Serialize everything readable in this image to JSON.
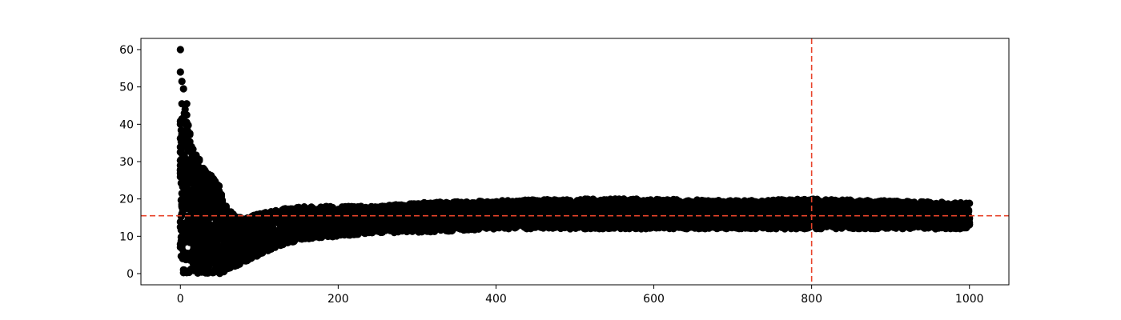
{
  "chart_data": {
    "type": "scatter",
    "title": "",
    "xlabel": "",
    "ylabel": "",
    "xlim": [
      -50,
      1050
    ],
    "ylim": [
      -3,
      63
    ],
    "x_ticks": [
      0,
      200,
      400,
      600,
      800,
      1000
    ],
    "x_tick_labels": [
      "0",
      "200",
      "400",
      "600",
      "800",
      "1000"
    ],
    "y_ticks": [
      0,
      10,
      20,
      30,
      40,
      50,
      60
    ],
    "y_tick_labels": [
      "0",
      "10",
      "20",
      "30",
      "40",
      "50",
      "60"
    ],
    "grid": false,
    "legend": "none",
    "marker_color": "#000000",
    "reference_lines": [
      {
        "orientation": "horizontal",
        "value": 15.5,
        "color": "#e8432a",
        "style": "dashed"
      },
      {
        "orientation": "vertical",
        "value": 800,
        "color": "#e8432a",
        "style": "dashed"
      }
    ],
    "envelope": {
      "x": [
        0,
        5,
        10,
        15,
        20,
        30,
        40,
        50,
        60,
        70,
        80,
        100,
        120,
        150,
        200,
        250,
        300,
        400,
        500,
        600,
        700,
        800,
        900,
        1000
      ],
      "low": [
        0,
        0,
        0,
        0,
        0,
        0,
        0,
        0,
        1,
        2,
        3,
        5,
        7,
        9,
        10,
        11,
        11,
        12,
        12,
        12,
        12,
        12,
        12,
        12
      ],
      "high": [
        41,
        45,
        41,
        34,
        32,
        29,
        26,
        24,
        17,
        16,
        15,
        16,
        17,
        18,
        18,
        18,
        19,
        19.5,
        20,
        20,
        19.5,
        20,
        19.5,
        19
      ]
    },
    "peaks": [
      {
        "x": 0,
        "y": 60
      },
      {
        "x": 0,
        "y": 54
      },
      {
        "x": 2,
        "y": 51.5
      },
      {
        "x": 4,
        "y": 49.5
      },
      {
        "x": 2,
        "y": 45.5
      },
      {
        "x": 8,
        "y": 45.5
      },
      {
        "x": 4,
        "y": 41
      },
      {
        "x": 0,
        "y": 40
      },
      {
        "x": 8,
        "y": 40.5
      },
      {
        "x": 2,
        "y": 37.5
      },
      {
        "x": 10,
        "y": 34.5
      },
      {
        "x": 14,
        "y": 34
      }
    ]
  }
}
